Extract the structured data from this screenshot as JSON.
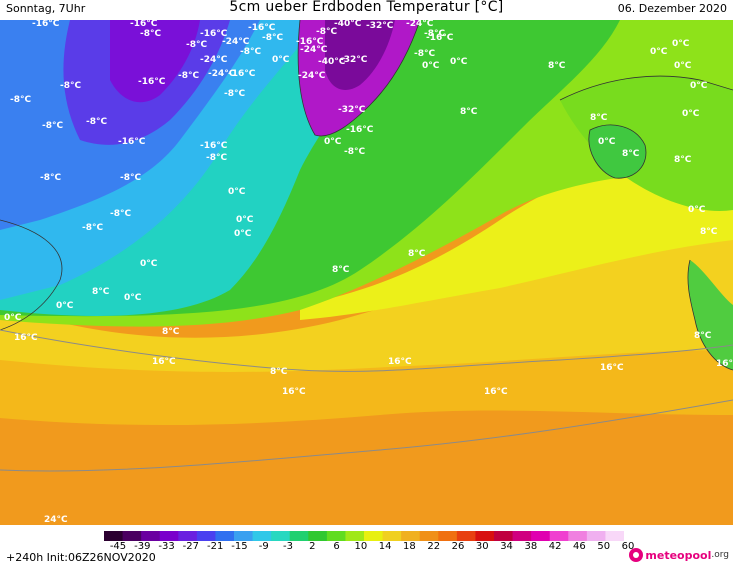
{
  "header": {
    "left": "Sonntag, 7Uhr",
    "title": "5cm ueber Erdboden Temperatur [°C]",
    "right": "06. Dezember 2020"
  },
  "footer": {
    "run_info": "+240h  Init:06Z26NOV2020",
    "logo_text": "meteopool",
    "logo_tld": ".org"
  },
  "legend": {
    "ticks": [
      "-45",
      "-39",
      "-33",
      "-27",
      "-21",
      "-15",
      "-9",
      "-3",
      "2",
      "6",
      "10",
      "14",
      "18",
      "22",
      "26",
      "30",
      "34",
      "38",
      "42",
      "46",
      "50",
      "60"
    ],
    "colors": [
      "#2b0030",
      "#4a0060",
      "#6a00a0",
      "#7a00cc",
      "#6a20e0",
      "#4a40f0",
      "#3070f0",
      "#3aa0f0",
      "#30c8e8",
      "#28d8c0",
      "#20d070",
      "#30c830",
      "#60dc20",
      "#a0e818",
      "#e8f010",
      "#f0d020",
      "#f0b020",
      "#f09018",
      "#f07010",
      "#e84010",
      "#d81010",
      "#c00040",
      "#d00080",
      "#e000b0",
      "#f040d0",
      "#f080e0",
      "#f0b0f0",
      "#f8d8f8"
    ],
    "ticks_unit": "°C"
  },
  "map": {
    "labels": [
      {
        "t": "-16°C",
        "c": "label"
      },
      {
        "t": "-16°C",
        "c": "label"
      },
      {
        "t": "-8°C",
        "c": "label"
      },
      {
        "t": "-16°C",
        "c": "label"
      },
      {
        "t": "-16°C",
        "c": "label"
      },
      {
        "t": "-8°C",
        "c": "label"
      },
      {
        "t": "-24°C",
        "c": "label"
      },
      {
        "t": "-8°C",
        "c": "label"
      },
      {
        "t": "-16°C",
        "c": "label"
      },
      {
        "t": "-8°C",
        "c": "label"
      },
      {
        "t": "-24°C",
        "c": "label"
      },
      {
        "t": "-40°C",
        "c": "label"
      },
      {
        "t": "-32°C",
        "c": "label"
      },
      {
        "t": "-24°C",
        "c": "label"
      },
      {
        "t": "-8°C",
        "c": "label"
      },
      {
        "t": "-8°C",
        "c": "label"
      },
      {
        "t": "-16°C",
        "c": "label"
      },
      {
        "t": "-32°C",
        "c": "label"
      },
      {
        "t": "0°C",
        "c": "label"
      },
      {
        "t": "-40°C",
        "c": "label"
      },
      {
        "t": "-24°C",
        "c": "label"
      },
      {
        "t": "-24°C",
        "c": "label"
      },
      {
        "t": "-8°C",
        "c": "label"
      },
      {
        "t": "0°C",
        "c": "label"
      },
      {
        "t": "0°C",
        "c": "label"
      },
      {
        "t": "0°C",
        "c": "label"
      },
      {
        "t": "8°C",
        "c": "label"
      },
      {
        "t": "0°C",
        "c": "label"
      },
      {
        "t": "-8°C",
        "c": "label"
      },
      {
        "t": "-16°C",
        "c": "label"
      },
      {
        "t": "-8°C",
        "c": "label"
      },
      {
        "t": "-16°C",
        "c": "label"
      },
      {
        "t": "-8°C",
        "c": "label"
      },
      {
        "t": "-24°C",
        "c": "label"
      },
      {
        "t": "-8°C",
        "c": "label"
      },
      {
        "t": "-8°C",
        "c": "label"
      },
      {
        "t": "-8°C",
        "c": "label"
      },
      {
        "t": "-16°C",
        "c": "label"
      },
      {
        "t": "-16°C",
        "c": "label"
      },
      {
        "t": "-8°C",
        "c": "label"
      },
      {
        "t": "-32°C",
        "c": "label"
      },
      {
        "t": "-16°C",
        "c": "label"
      },
      {
        "t": "0°C",
        "c": "label"
      },
      {
        "t": "-8°C",
        "c": "label"
      },
      {
        "t": "8°C",
        "c": "label"
      },
      {
        "t": "8°C",
        "c": "label"
      },
      {
        "t": "0°C",
        "c": "label"
      },
      {
        "t": "0°C",
        "c": "label"
      },
      {
        "t": "0°C",
        "c": "label"
      },
      {
        "t": "0°C",
        "c": "label"
      },
      {
        "t": "-8°C",
        "c": "label"
      },
      {
        "t": "-8°C",
        "c": "label"
      },
      {
        "t": "-8°C",
        "c": "label"
      },
      {
        "t": "0°C",
        "c": "label"
      },
      {
        "t": "0°C",
        "c": "label"
      },
      {
        "t": "0°C",
        "c": "label"
      },
      {
        "t": "8°C",
        "c": "label"
      },
      {
        "t": "-8°C",
        "c": "label"
      },
      {
        "t": "8°C",
        "c": "label"
      },
      {
        "t": "0°C",
        "c": "label"
      },
      {
        "t": "8°C",
        "c": "label"
      },
      {
        "t": "0°C",
        "c": "label"
      },
      {
        "t": "0°C",
        "c": "label"
      },
      {
        "t": "0°C",
        "c": "label"
      },
      {
        "t": "8°C",
        "c": "label"
      },
      {
        "t": "8°C",
        "c": "label"
      },
      {
        "t": "0°C",
        "c": "label"
      },
      {
        "t": "8°C",
        "c": "label"
      },
      {
        "t": "8°C",
        "c": "label"
      },
      {
        "t": "16°C",
        "c": "label"
      },
      {
        "t": "16°C",
        "c": "label"
      },
      {
        "t": "8°C",
        "c": "label"
      },
      {
        "t": "16°C",
        "c": "label"
      },
      {
        "t": "16°C",
        "c": "label"
      },
      {
        "t": "16°C",
        "c": "label"
      },
      {
        "t": "16°C",
        "c": "label"
      },
      {
        "t": "8°C",
        "c": "label"
      },
      {
        "t": "16°C",
        "c": "label"
      },
      {
        "t": "24°C",
        "c": "label"
      }
    ]
  }
}
